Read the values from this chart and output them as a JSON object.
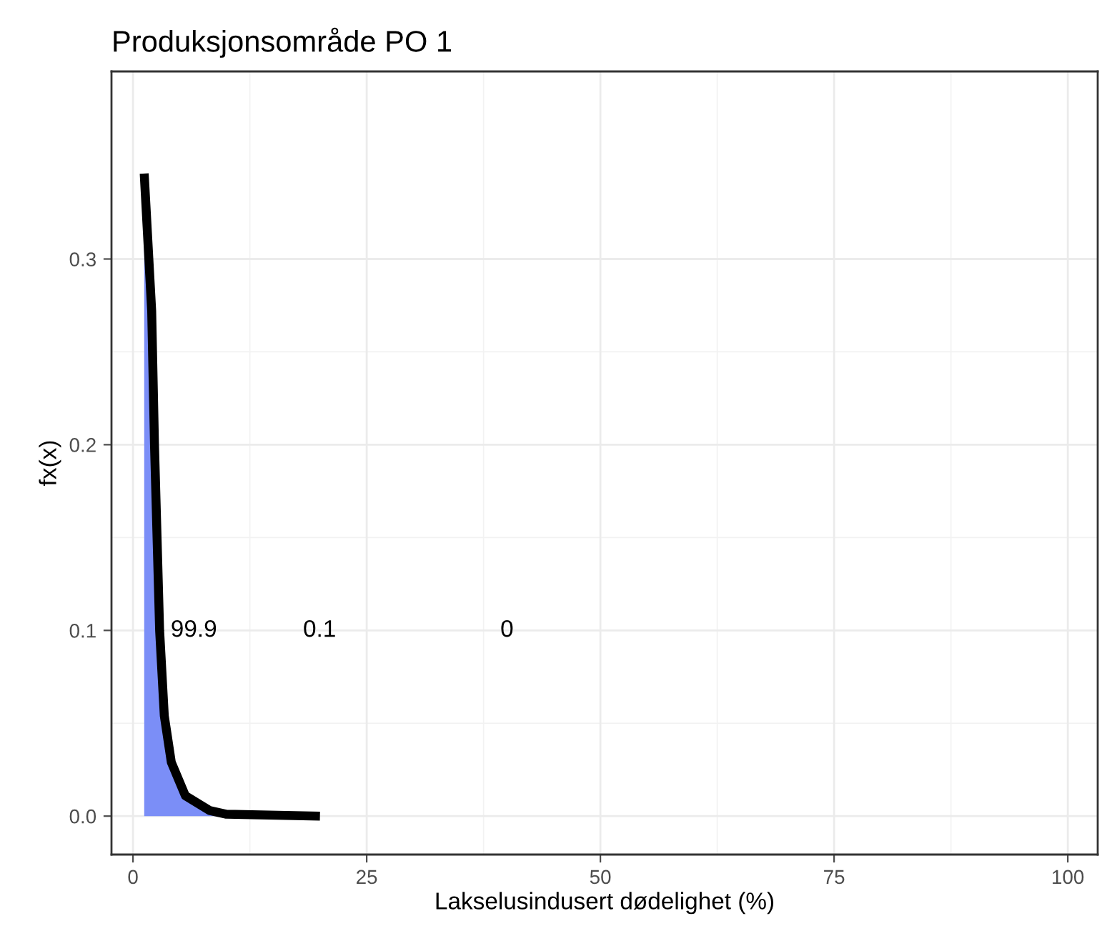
{
  "chart_data": {
    "type": "line",
    "title": "Produksjonsområde PO 1",
    "xlabel": "Lakselusindusert dødelighet (%)",
    "ylabel": "fx(x)",
    "series": [
      {
        "type": "area",
        "color": "#7b8ef7",
        "x": [
          1.2,
          2.0,
          2.3,
          2.85,
          3.35,
          4.1,
          5.6,
          8.2,
          10
        ],
        "values": [
          0.346,
          0.272,
          0.2,
          0.1,
          0.054,
          0.029,
          0.011,
          0.003,
          0.001
        ]
      },
      {
        "color": "#000000",
        "x": [
          1.2,
          2.0,
          2.3,
          2.85,
          3.35,
          4.1,
          5.6,
          8.2,
          10,
          20
        ],
        "values": [
          0.346,
          0.272,
          0.2,
          0.1,
          0.054,
          0.029,
          0.011,
          0.003,
          0.001,
          0.0
        ]
      }
    ],
    "annotations": [
      "99.9",
      "0.1",
      "0"
    ],
    "xlim": [
      -2.3,
      103.2
    ],
    "ylim": [
      -0.0207,
      0.401
    ],
    "xticks": [
      0,
      25,
      50,
      75,
      100
    ],
    "yticks": [
      {
        "value": 0,
        "label": "0.0"
      },
      {
        "value": 0.1,
        "label": "0.1"
      },
      {
        "value": 0.2,
        "label": "0.2"
      },
      {
        "value": 0.3,
        "label": "0.3"
      }
    ],
    "grid": true,
    "legend": false
  }
}
